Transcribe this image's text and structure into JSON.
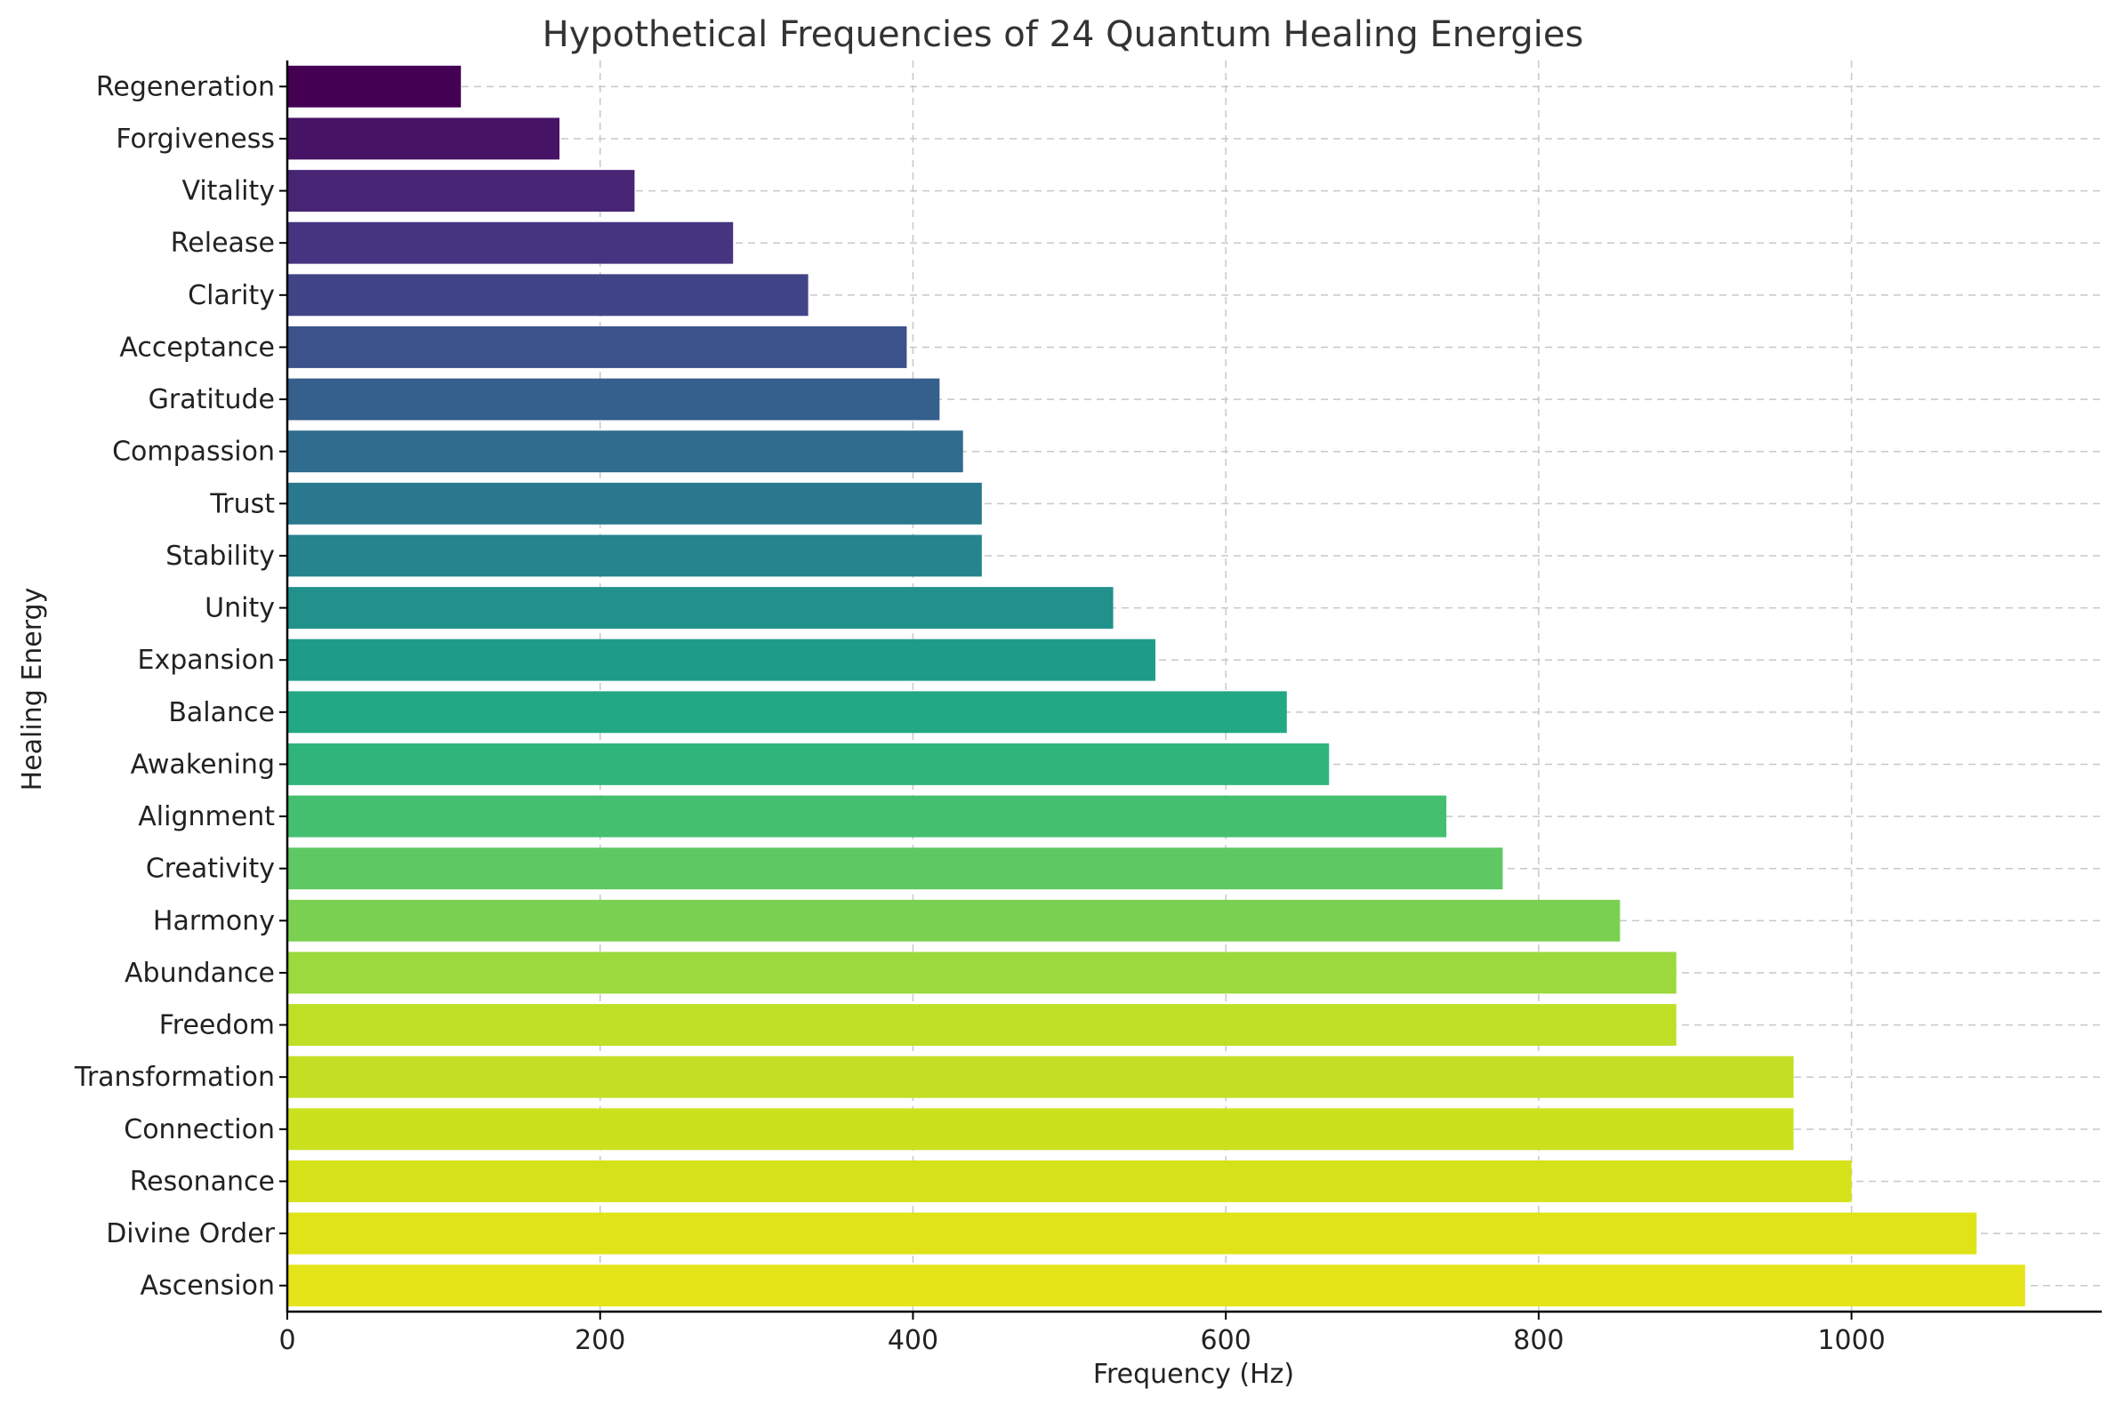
{
  "chart_data": {
    "type": "bar",
    "orientation": "horizontal",
    "title": "Hypothetical Frequencies of 24 Quantum Healing Energies",
    "xlabel": "Frequency (Hz)",
    "ylabel": "Healing Energy",
    "xlim": [
      0,
      1160
    ],
    "xticks": [
      0,
      200,
      400,
      600,
      800,
      1000
    ],
    "grid": true,
    "categories": [
      "Regeneration",
      "Forgiveness",
      "Vitality",
      "Release",
      "Clarity",
      "Acceptance",
      "Gratitude",
      "Compassion",
      "Trust",
      "Stability",
      "Unity",
      "Expansion",
      "Balance",
      "Awakening",
      "Alignment",
      "Creativity",
      "Harmony",
      "Abundance",
      "Freedom",
      "Transformation",
      "Connection",
      "Resonance",
      "Divine Order",
      "Ascension"
    ],
    "values": [
      111,
      174,
      222,
      285,
      333,
      396,
      417,
      432,
      444,
      444,
      528,
      555,
      639,
      666,
      741,
      777,
      852,
      888,
      888,
      963,
      963,
      1000,
      1080,
      1111
    ],
    "colors": [
      "#440154",
      "#471365",
      "#482475",
      "#463480",
      "#414487",
      "#3b528b",
      "#355f8d",
      "#2f6c8e",
      "#2a788e",
      "#25848e",
      "#21918c",
      "#1e9c89",
      "#22a884",
      "#2fb47c",
      "#44bf70",
      "#5ec962",
      "#7ad151",
      "#9bd93c",
      "#bddf26",
      "#c2df23",
      "#cbe11e",
      "#d5e21a",
      "#dfe318",
      "#e5e419"
    ]
  }
}
